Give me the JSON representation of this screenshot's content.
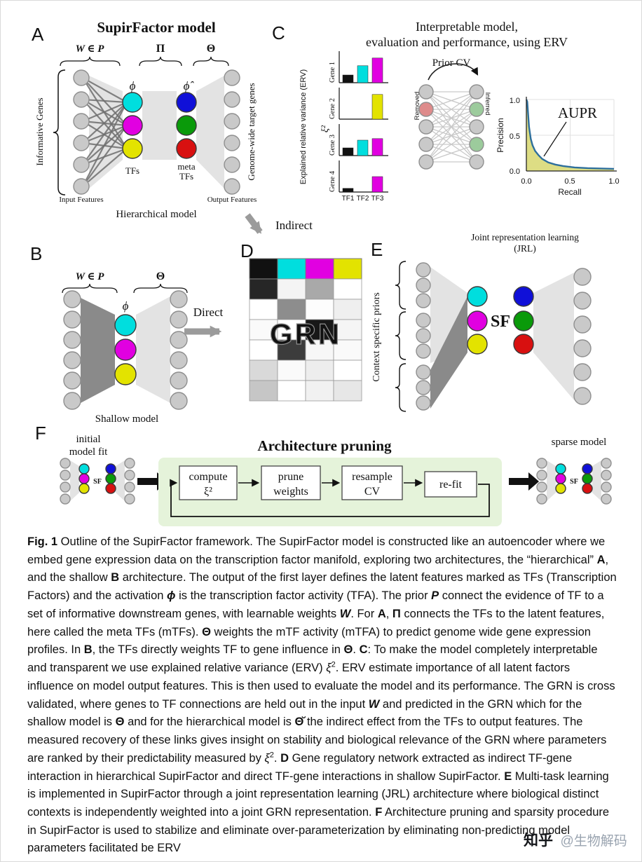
{
  "colors": {
    "cyan": "#00dede",
    "magenta": "#e100e1",
    "yellow": "#e3e300",
    "blue": "#1010d8",
    "green": "#0a9a0a",
    "red": "#d81010",
    "node_gray": "#c9c9c9",
    "node_stroke": "#8f8f8f",
    "band_light": "#e3e3e3",
    "band_dark": "#8a8a8a",
    "edge_dark": "#6f6f6f",
    "removed": "#de8b8b",
    "inferred": "#9ccb9c",
    "aupr_line": "#2e6f9c",
    "aupr_fill": "#d9d977",
    "gray_arrow": "#9b9b9b",
    "pruning_bg": "#e5f3da",
    "black": "#111111"
  },
  "panel_a": {
    "label": "A",
    "title": "SupirFactor model",
    "w_in_p": "W ∈ P",
    "pi": "Π",
    "theta": "Θ",
    "phi": "ϕ",
    "phi_hat": "ϕ̂",
    "informative_genes": "Informative Genes",
    "genome_wide": "Genome-wide target genes",
    "tfs": "TFs",
    "meta": "meta",
    "meta_tfs": "TFs",
    "input_features": "Input Features",
    "output_features": "Output Features",
    "caption": "Hierarchical model"
  },
  "panel_b": {
    "label": "B",
    "w_in_p": "W ∈ P",
    "theta": "Θ",
    "phi": "ϕ",
    "caption": "Shallow model"
  },
  "panel_c": {
    "label": "C",
    "title_line1": "Interpretable model,",
    "title_line2": "evaluation and performance, using ERV",
    "erv_axis": "Explained relative variance (ERV)",
    "xi2": "ξ²",
    "tf_ticks": [
      "TF1",
      "TF2",
      "TF3"
    ],
    "prior_cv": "Prior CV",
    "removed": "Removed",
    "inferred": "Inferred",
    "aupr": {
      "ylabel": "Precision",
      "xlabel": "Recall",
      "yticks": [
        "1.0",
        "0.5",
        "0.0"
      ],
      "xticks": [
        "0.0",
        "0.5",
        "1.0"
      ],
      "annotation": "AUPR"
    }
  },
  "panel_d": {
    "label": "D",
    "indirect": "Indirect",
    "direct": "Direct",
    "grn": "GRN",
    "header": [
      "#111111",
      "#00dede",
      "#e100e1",
      "#e3e300"
    ],
    "grid": [
      [
        "#262626",
        "#f4f4f4",
        "#a9a9a9",
        "#ffffff"
      ],
      [
        "#ffffff",
        "#8d8d8d",
        "#fdfdfd",
        "#efefef"
      ],
      [
        "#fafafa",
        "#ffffff",
        "#181818",
        "#f5f5f5"
      ],
      [
        "#ffffff",
        "#3c3c3c",
        "#f7f7f7",
        "#fafafa"
      ],
      [
        "#d9d9d9",
        "#fafafa",
        "#ededed",
        "#ffffff"
      ],
      [
        "#c6c6c6",
        "#ffffff",
        "#f1f1f1",
        "#e7e7e7"
      ]
    ]
  },
  "panel_e": {
    "label": "E",
    "title_line1": "Joint representation learning",
    "title_line2": "(JRL)",
    "context": "Context specific priors",
    "sf": "SF"
  },
  "panel_f": {
    "label": "F",
    "initial_line1": "initial",
    "initial_line2": "model fit",
    "title": "Architecture pruning",
    "steps": [
      [
        "compute",
        "ξ²"
      ],
      [
        "prune",
        "weights"
      ],
      [
        "resample",
        "CV"
      ],
      [
        "re-fit"
      ]
    ],
    "sparse": "sparse model",
    "sf": "SF"
  },
  "chart_data": [
    {
      "type": "bar",
      "title": "Explained relative variance (ERV) per gene",
      "categories": [
        "TF1",
        "TF2",
        "TF3"
      ],
      "ylabel": "ξ²",
      "series": [
        {
          "name": "Gene 1",
          "values": [
            0.25,
            0.55,
            0.8
          ],
          "colors": [
            "#111111",
            "#00dede",
            "#e100e1"
          ]
        },
        {
          "name": "Gene 2",
          "values": [
            0,
            0,
            0.8
          ],
          "colors": [
            null,
            null,
            "#e3e300"
          ]
        },
        {
          "name": "Gene 3",
          "values": [
            0.25,
            0.5,
            0.55
          ],
          "colors": [
            "#111111",
            "#00dede",
            "#e100e1"
          ]
        },
        {
          "name": "Gene 4",
          "values": [
            0.12,
            0,
            0.5
          ],
          "colors": [
            "#111111",
            null,
            "#e100e1"
          ]
        }
      ]
    },
    {
      "type": "line",
      "title": "AUPR",
      "xlabel": "Recall",
      "ylabel": "Precision",
      "xlim": [
        0,
        1
      ],
      "ylim": [
        0,
        1
      ],
      "x": [
        0,
        0.01,
        0.02,
        0.03,
        0.05,
        0.07,
        0.1,
        0.14,
        0.18,
        0.25,
        0.33,
        0.42,
        0.55,
        0.7,
        0.85,
        1.0
      ],
      "y": [
        1.0,
        0.97,
        0.8,
        0.62,
        0.45,
        0.36,
        0.28,
        0.22,
        0.17,
        0.12,
        0.09,
        0.07,
        0.05,
        0.04,
        0.035,
        0.03
      ],
      "fill": true,
      "annotation": "AUPR"
    }
  ],
  "caption": {
    "segments": [
      {
        "t": "Fig. 1",
        "s": "b"
      },
      {
        "t": " Outline of the SupirFactor framework. The SupirFactor model is constructed like an autoencoder where we embed gene expression data on the transcription factor manifold, exploring two architectures, the “hierarchical” ",
        "s": ""
      },
      {
        "t": "A",
        "s": "b"
      },
      {
        "t": ", and the shallow ",
        "s": ""
      },
      {
        "t": "B",
        "s": "b"
      },
      {
        "t": " architecture. The output of the first layer defines the latent features marked as TFs (Transcription Factors) and the activation ",
        "s": ""
      },
      {
        "t": "ϕ",
        "s": "bi"
      },
      {
        "t": " is the transcription factor activity (TFA). The prior ",
        "s": ""
      },
      {
        "t": "P",
        "s": "bi"
      },
      {
        "t": " connect the evidence of TF to a set of informative downstream genes, with learnable weights ",
        "s": ""
      },
      {
        "t": "W",
        "s": "bi"
      },
      {
        "t": ". For ",
        "s": ""
      },
      {
        "t": "A",
        "s": "b"
      },
      {
        "t": ", ",
        "s": ""
      },
      {
        "t": "Π",
        "s": "b"
      },
      {
        "t": " connects the TFs to the latent features, here called the meta TFs (mTFs). ",
        "s": ""
      },
      {
        "t": "Θ",
        "s": "b"
      },
      {
        "t": " weights the mTF activity (mTFA) to predict genome wide gene expression profiles. In ",
        "s": ""
      },
      {
        "t": "B",
        "s": "b"
      },
      {
        "t": ", the TFs directly weights TF to gene influence in ",
        "s": ""
      },
      {
        "t": "Θ",
        "s": "b"
      },
      {
        "t": ". ",
        "s": ""
      },
      {
        "t": "C",
        "s": "b"
      },
      {
        "t": ": To make the model completely interpretable and transparent we use explained relative variance (ERV) ",
        "s": ""
      },
      {
        "t": "ξ",
        "s": "i"
      },
      {
        "t": "2",
        "s": "sup"
      },
      {
        "t": ". ERV estimate importance of all latent factors influence on model output features. This is then used to evaluate the model and its performance. The GRN is cross validated, where genes to TF connections are held out in the input ",
        "s": ""
      },
      {
        "t": "W",
        "s": "bi"
      },
      {
        "t": " and predicted in the GRN which for the shallow model is ",
        "s": ""
      },
      {
        "t": "Θ",
        "s": "b"
      },
      {
        "t": " and for the hierarchical model is ",
        "s": ""
      },
      {
        "t": "Θ̆",
        "s": "b"
      },
      {
        "t": " the indirect effect from the TFs to output features. The measured recovery of these links gives insight on stability and biological relevance of the GRN where parameters are ranked by their predictability measured by ",
        "s": ""
      },
      {
        "t": "ξ",
        "s": "i"
      },
      {
        "t": "2",
        "s": "sup"
      },
      {
        "t": ". ",
        "s": ""
      },
      {
        "t": "D",
        "s": "b"
      },
      {
        "t": " Gene regulatory network extracted as indirect TF-gene interaction in hierarchical SupirFactor and direct TF-gene interactions in shallow SupirFactor. ",
        "s": ""
      },
      {
        "t": "E",
        "s": "b"
      },
      {
        "t": " Multi-task learning is implemented in SupirFactor through a joint representation learning (JRL) architecture where biological distinct contexts is independently weighted into a joint GRN representation. ",
        "s": ""
      },
      {
        "t": "F",
        "s": "b"
      },
      {
        "t": " Architecture pruning and sparsity procedure in SupirFactor is used to stabilize and eliminate over-parameterization by eliminating non-predicting model parameters facilitated be ERV",
        "s": ""
      }
    ]
  },
  "watermark": {
    "brand": "知乎",
    "handle": "@生物解码"
  }
}
